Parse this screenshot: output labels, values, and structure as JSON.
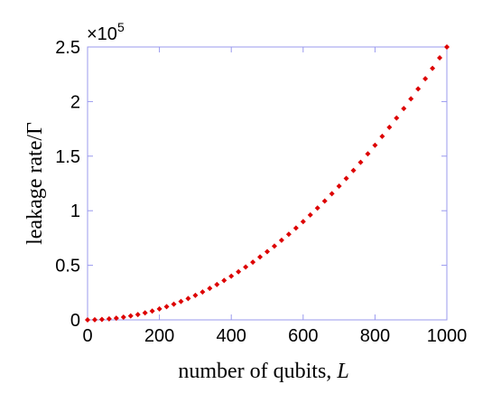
{
  "chart_data": {
    "type": "scatter",
    "xlabel": "number of qubits, ",
    "xlabel_var": "L",
    "ylabel": "leakage rate/Γ",
    "y_multiplier": {
      "base": "×10",
      "exponent": "5"
    },
    "xlim": [
      0,
      1000
    ],
    "ylim": [
      0,
      2.5
    ],
    "x_ticks": [
      0,
      200,
      400,
      600,
      800,
      1000
    ],
    "x_tick_labels": [
      "0",
      "200",
      "400",
      "600",
      "800",
      "1000"
    ],
    "y_ticks": [
      0,
      0.5,
      1,
      1.5,
      2,
      2.5
    ],
    "y_tick_labels": [
      "0",
      "0.5",
      "1",
      "1.5",
      "2",
      "2.5"
    ],
    "grid": false,
    "legend": "none",
    "colors": {
      "marker": "#dd0000",
      "axes": "#9999ee",
      "plot_background": "#ffffff"
    },
    "series": [
      {
        "marker": "diamond",
        "x": [
          0,
          20,
          40,
          60,
          80,
          100,
          120,
          140,
          160,
          180,
          200,
          220,
          240,
          260,
          280,
          300,
          320,
          340,
          360,
          380,
          400,
          420,
          440,
          460,
          480,
          500,
          520,
          540,
          560,
          580,
          600,
          620,
          640,
          660,
          680,
          700,
          720,
          740,
          760,
          780,
          800,
          820,
          840,
          860,
          880,
          900,
          920,
          940,
          960,
          980,
          1000
        ],
        "y": [
          0,
          0.001,
          0.004,
          0.009,
          0.016,
          0.025,
          0.036,
          0.049,
          0.064,
          0.081,
          0.1,
          0.121,
          0.144,
          0.169,
          0.196,
          0.225,
          0.256,
          0.289,
          0.324,
          0.361,
          0.4,
          0.441,
          0.484,
          0.529,
          0.576,
          0.625,
          0.676,
          0.729,
          0.784,
          0.841,
          0.9,
          0.961,
          1.024,
          1.089,
          1.156,
          1.225,
          1.296,
          1.369,
          1.444,
          1.521,
          1.6,
          1.681,
          1.764,
          1.849,
          1.936,
          2.025,
          2.116,
          2.209,
          2.304,
          2.401,
          2.5
        ]
      }
    ]
  }
}
